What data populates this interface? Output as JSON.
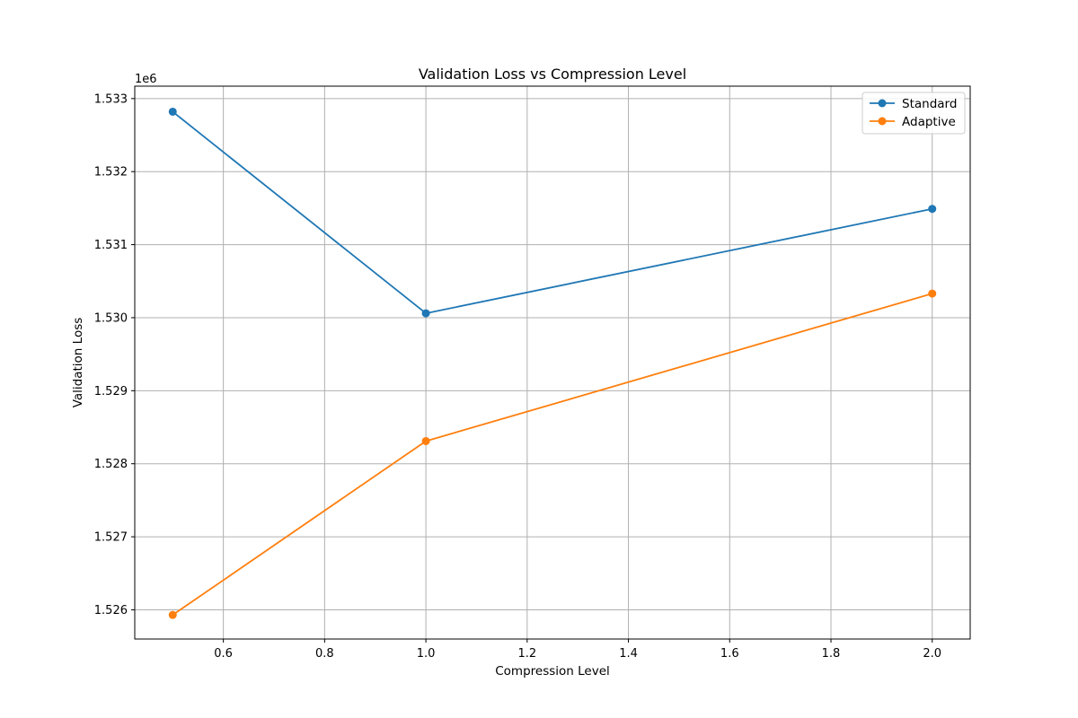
{
  "chart_data": {
    "type": "line",
    "title": "Validation Loss vs Compression Level",
    "xlabel": "Compression Level",
    "ylabel": "Validation Loss",
    "y_offset_label": "1e6",
    "xlim": [
      0.425,
      2.075
    ],
    "ylim": [
      1525600,
      1533170
    ],
    "xticks": [
      0.6,
      0.8,
      1.0,
      1.2,
      1.4,
      1.6,
      1.8,
      2.0
    ],
    "xtick_labels": [
      "0.6",
      "0.8",
      "1.0",
      "1.2",
      "1.4",
      "1.6",
      "1.8",
      "2.0"
    ],
    "yticks": [
      1526000,
      1527000,
      1528000,
      1529000,
      1530000,
      1531000,
      1532000,
      1533000
    ],
    "ytick_labels": [
      "1.526",
      "1.527",
      "1.528",
      "1.529",
      "1.530",
      "1.531",
      "1.532",
      "1.533"
    ],
    "grid": true,
    "legend_position": "top-right",
    "x": [
      0.5,
      1.0,
      2.0
    ],
    "series": [
      {
        "name": "Standard",
        "color": "#1f77b4",
        "values": [
          1532820,
          1530060,
          1531490
        ]
      },
      {
        "name": "Adaptive",
        "color": "#ff7f0e",
        "values": [
          1525930,
          1528310,
          1530330
        ]
      }
    ]
  }
}
